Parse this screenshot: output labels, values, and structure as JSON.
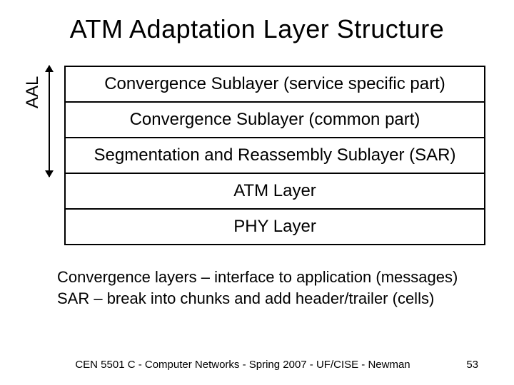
{
  "title": "ATM Adaptation Layer Structure",
  "aal_label": "AAL",
  "layers": [
    "Convergence Sublayer (service specific part)",
    "Convergence Sublayer (common part)",
    "Segmentation and Reassembly Sublayer (SAR)",
    "ATM Layer",
    "PHY Layer"
  ],
  "note_line1": "Convergence layers – interface to application (messages)",
  "note_line2": "SAR – break into chunks and add header/trailer (cells)",
  "footer_text": "CEN 5501 C - Computer Networks - Spring 2007 - UF/CISE - Newman",
  "page_number": "53",
  "colors": {
    "background": "#ffffff",
    "text": "#000000",
    "border": "#000000"
  },
  "fontsizes": {
    "title": 36,
    "layer": 24,
    "aal_label": 24,
    "notes": 22,
    "footer": 15
  },
  "layout": {
    "slide_width": 720,
    "slide_height": 540,
    "stack_width": 590,
    "aal_arrow_span_layers": 3
  }
}
